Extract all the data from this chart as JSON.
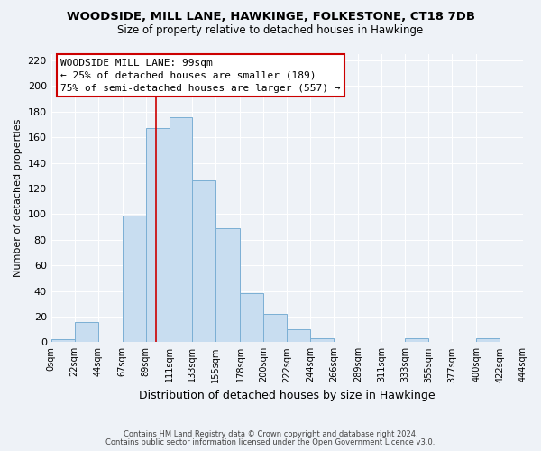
{
  "title": "WOODSIDE, MILL LANE, HAWKINGE, FOLKESTONE, CT18 7DB",
  "subtitle": "Size of property relative to detached houses in Hawkinge",
  "xlabel": "Distribution of detached houses by size in Hawkinge",
  "ylabel": "Number of detached properties",
  "footnote1": "Contains HM Land Registry data © Crown copyright and database right 2024.",
  "footnote2": "Contains public sector information licensed under the Open Government Licence v3.0.",
  "bar_color": "#c8ddf0",
  "bar_edge_color": "#7bafd4",
  "vline_x": 99,
  "vline_color": "#cc0000",
  "annotation_line1": "WOODSIDE MILL LANE: 99sqm",
  "annotation_line2": "← 25% of detached houses are smaller (189)",
  "annotation_line3": "75% of semi-detached houses are larger (557) →",
  "annotation_box_color": "#ffffff",
  "annotation_edge_color": "#cc0000",
  "bin_edges": [
    0,
    22,
    44,
    67,
    89,
    111,
    133,
    155,
    178,
    200,
    222,
    244,
    266,
    289,
    311,
    333,
    355,
    377,
    400,
    422,
    444
  ],
  "bin_heights": [
    2,
    16,
    0,
    99,
    167,
    176,
    126,
    89,
    38,
    22,
    10,
    3,
    0,
    0,
    0,
    3,
    0,
    0,
    3,
    0
  ],
  "ylim": [
    0,
    225
  ],
  "yticks": [
    0,
    20,
    40,
    60,
    80,
    100,
    120,
    140,
    160,
    180,
    200,
    220
  ],
  "xtick_labels": [
    "0sqm",
    "22sqm",
    "44sqm",
    "67sqm",
    "89sqm",
    "111sqm",
    "133sqm",
    "155sqm",
    "178sqm",
    "200sqm",
    "222sqm",
    "244sqm",
    "266sqm",
    "289sqm",
    "311sqm",
    "333sqm",
    "355sqm",
    "377sqm",
    "400sqm",
    "422sqm",
    "444sqm"
  ],
  "bg_color": "#eef2f7",
  "grid_color": "#ffffff",
  "title_fontsize": 9.5,
  "subtitle_fontsize": 8.5,
  "footnote_fontsize": 6.0,
  "ylabel_fontsize": 8,
  "xlabel_fontsize": 9,
  "ytick_fontsize": 8,
  "xtick_fontsize": 7
}
